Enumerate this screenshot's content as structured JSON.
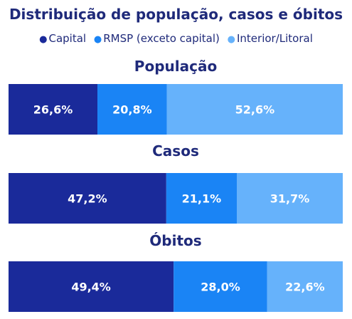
{
  "chart_data": {
    "type": "bar",
    "orientation": "horizontal",
    "stacked": true,
    "percent": true,
    "title": "Distribuição de população, casos e óbitos",
    "legend_position": "top",
    "categories": [
      "População",
      "Casos",
      "Óbitos"
    ],
    "series": [
      {
        "name": "Capital",
        "values": [
          26.6,
          47.2,
          49.4
        ],
        "labels": [
          "26,6%",
          "47,2%",
          "49,4%"
        ],
        "color": "#1a2a9a"
      },
      {
        "name": "RMSP (exceto capital)",
        "values": [
          20.8,
          21.1,
          28.0
        ],
        "labels": [
          "20,8%",
          "21,1%",
          "28,0%"
        ],
        "color": "#1a84f5"
      },
      {
        "name": "Interior/Litoral",
        "values": [
          52.6,
          31.7,
          22.6
        ],
        "labels": [
          "52,6%",
          "31,7%",
          "22,6%"
        ],
        "color": "#66b2fb"
      }
    ],
    "grid": false
  }
}
